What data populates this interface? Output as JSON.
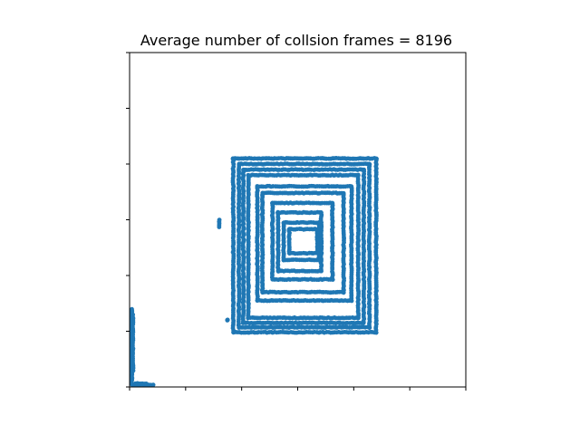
{
  "chart_data": {
    "type": "scatter",
    "title": "Average number of collsion frames = 8196",
    "xlabel": "",
    "ylabel": "",
    "xlim": [
      0,
      6
    ],
    "ylim": [
      0,
      6
    ],
    "x_ticks": [
      0,
      1,
      2,
      3,
      4,
      5,
      6
    ],
    "y_ticks": [
      0,
      1,
      2,
      3,
      4,
      5,
      6
    ],
    "tick_labels_visible": false,
    "grid": false,
    "legend": "none",
    "marker_color": "#1f77b4",
    "spiral_outer_rings": [
      [
        1.85,
        0.98,
        4.4,
        4.1
      ],
      [
        1.95,
        1.07,
        4.28,
        4.0
      ],
      [
        2.03,
        1.15,
        4.18,
        3.9
      ],
      [
        2.12,
        1.24,
        4.08,
        3.8
      ]
    ],
    "spiral_inner_rings": [
      [
        2.28,
        1.55,
        3.96,
        3.6
      ],
      [
        2.37,
        1.7,
        3.82,
        3.48
      ],
      [
        2.55,
        1.93,
        3.62,
        3.3
      ],
      [
        2.65,
        2.08,
        3.42,
        3.13
      ],
      [
        2.75,
        2.28,
        3.38,
        2.95
      ],
      [
        2.85,
        2.4,
        3.35,
        2.83
      ]
    ],
    "spiral_tail": [
      [
        1.6,
        1.6,
        3.0,
        2.87
      ],
      [
        1.75,
        1.75,
        1.2,
        1.2
      ]
    ],
    "corner_vertical": [
      [
        0.04,
        0.04,
        0.05,
        1.4
      ],
      [
        0.06,
        0.06,
        0.3,
        1.3
      ]
    ],
    "corner_horizontal": [
      [
        0.05,
        0.42,
        0.04,
        0.04
      ],
      [
        0.1,
        0.3,
        0.06,
        0.06
      ]
    ]
  }
}
